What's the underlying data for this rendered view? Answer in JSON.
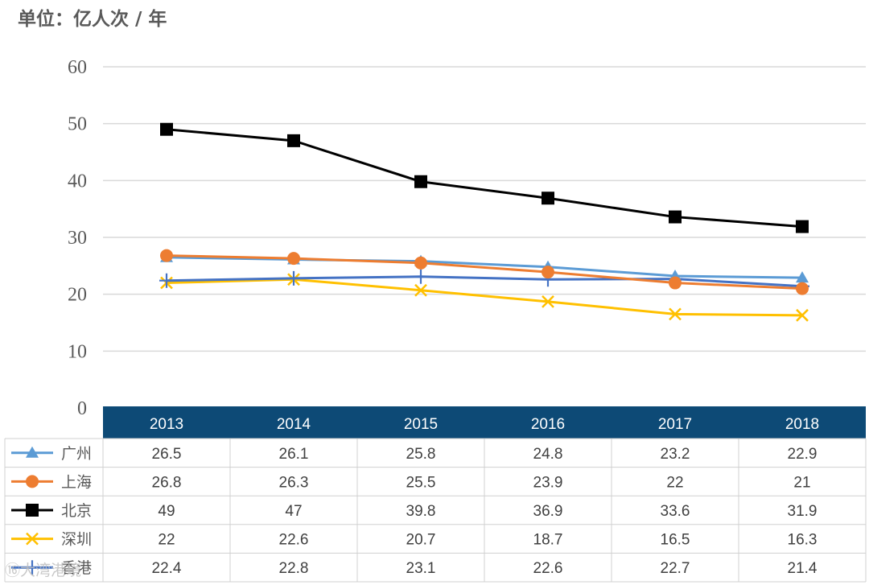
{
  "unit": "单位：亿人次 / 年",
  "watermark": "⑯大湾港境",
  "chart_data": {
    "type": "line",
    "categories": [
      "2013",
      "2014",
      "2015",
      "2016",
      "2017",
      "2018"
    ],
    "ylim": [
      0,
      60
    ],
    "yticks": [
      0,
      10,
      20,
      30,
      40,
      50,
      60
    ],
    "grid": true,
    "legend": "data-table",
    "series": [
      {
        "name": "广州",
        "values": [
          26.5,
          26.1,
          25.8,
          24.8,
          23.2,
          22.9
        ],
        "color": "#5b9bd5",
        "marker": "triangle"
      },
      {
        "name": "上海",
        "values": [
          26.8,
          26.3,
          25.5,
          23.9,
          22,
          21
        ],
        "color": "#ed7d31",
        "marker": "circle"
      },
      {
        "name": "北京",
        "values": [
          49,
          47,
          39.8,
          36.9,
          33.6,
          31.9
        ],
        "color": "#000000",
        "marker": "square"
      },
      {
        "name": "深圳",
        "values": [
          22,
          22.6,
          20.7,
          18.7,
          16.5,
          16.3
        ],
        "color": "#ffc000",
        "marker": "x"
      },
      {
        "name": "香港",
        "values": [
          22.4,
          22.8,
          23.1,
          22.6,
          22.7,
          21.4
        ],
        "color": "#4472c4",
        "marker": "plus"
      }
    ],
    "header_color": "#0d4a76",
    "grid_color": "#d9d9d9"
  }
}
